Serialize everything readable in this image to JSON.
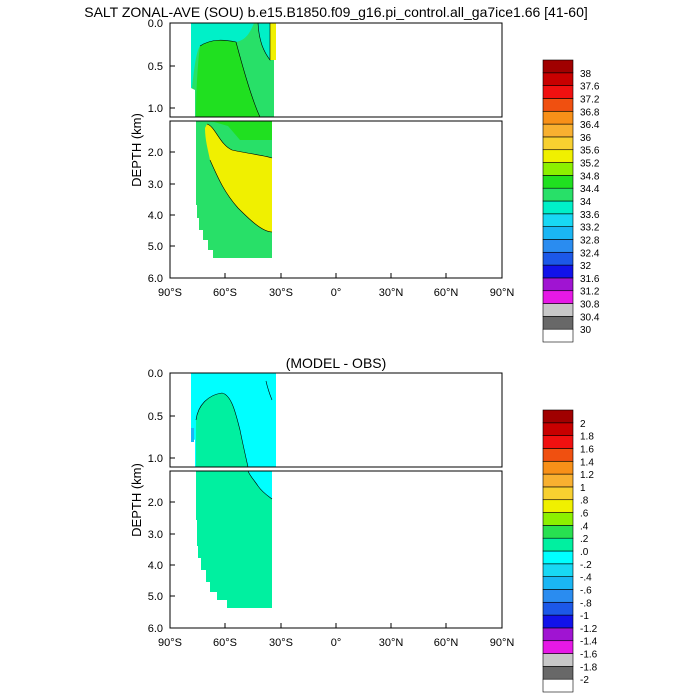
{
  "title": "SALT ZONAL-AVE (SOU) b.e15.B1850.f09_g16.pi_control.all_ga7ice1.66 [41-60]",
  "chart_data": [
    {
      "type": "contour",
      "subtitle": "",
      "ylabel": "DEPTH (km)",
      "x_range_deg": [
        -90,
        90
      ],
      "y_range_km": [
        0,
        6
      ],
      "y_split_km": 1.1,
      "x_ticks": [
        "90°S",
        "60°S",
        "30°S",
        "0°",
        "30°N",
        "60°N",
        "90°N"
      ],
      "y_ticks_upper": [
        "0.0",
        "0.5",
        "1.0"
      ],
      "y_ticks_lower": [
        "2.0",
        "3.0",
        "4.0",
        "5.0",
        "6.0"
      ],
      "colorbar_levels": [
        "30",
        "30.4",
        "30.8",
        "31.2",
        "31.6",
        "32",
        "32.4",
        "32.8",
        "33.2",
        "33.6",
        "34",
        "34.4",
        "34.8",
        "35.2",
        "35.6",
        "36",
        "36.4",
        "36.8",
        "37.2",
        "37.6",
        "38"
      ],
      "colorbar_colors": [
        "#ffffff",
        "#686868",
        "#c8c8c8",
        "#e619e6",
        "#a014d2",
        "#1212ea",
        "#1c58e8",
        "#2a8cf0",
        "#1ab6f4",
        "#18d8f4",
        "#00f0c8",
        "#28e068",
        "#20e020",
        "#8cf000",
        "#f0f000",
        "#f8d030",
        "#f8b030",
        "#f89018",
        "#f05010",
        "#f01010",
        "#c80000",
        "#a00000"
      ],
      "regions": [
        {
          "value_band": "34-34.4",
          "lat": [
            -77,
            -31
          ],
          "depth_km": [
            0,
            5.35
          ]
        },
        {
          "value_band": "33.6-34",
          "lat": [
            -77,
            -60
          ],
          "depth_km": [
            0,
            0.1
          ]
        },
        {
          "value_band": "34.8-35.2",
          "lat": [
            -67,
            -31
          ],
          "depth_km": [
            1.15,
            3.3
          ]
        },
        {
          "value_band": "34.4-34.8",
          "lat": [
            -71,
            -31
          ],
          "depth_km": [
            1.2,
            5.3
          ]
        }
      ]
    },
    {
      "type": "contour",
      "subtitle": "(MODEL - OBS)",
      "ylabel": "DEPTH (km)",
      "x_range_deg": [
        -90,
        90
      ],
      "y_range_km": [
        0,
        6
      ],
      "y_split_km": 1.1,
      "x_ticks": [
        "90°S",
        "60°S",
        "30°S",
        "0°",
        "30°N",
        "60°N",
        "90°N"
      ],
      "y_ticks_upper": [
        "0.0",
        "0.5",
        "1.0"
      ],
      "y_ticks_lower": [
        "2.0",
        "3.0",
        "4.0",
        "5.0",
        "6.0"
      ],
      "colorbar_levels": [
        "-2",
        "-1.8",
        "-1.6",
        "-1.4",
        "-1.2",
        "-1",
        "-.8",
        "-.6",
        "-.4",
        "-.2",
        ".0",
        ".2",
        ".4",
        ".6",
        ".8",
        "1",
        "1.2",
        "1.4",
        "1.6",
        "1.8",
        "2"
      ],
      "colorbar_colors": [
        "#ffffff",
        "#686868",
        "#c8c8c8",
        "#e619e6",
        "#a014d2",
        "#1212ea",
        "#1c58e8",
        "#2a8cf0",
        "#1ab6f4",
        "#18d8f4",
        "#00ffff",
        "#00f0a0",
        "#28e050",
        "#8cf000",
        "#f0f000",
        "#f8d030",
        "#f8b030",
        "#f89018",
        "#f05010",
        "#f01010",
        "#c80000",
        "#a00000"
      ],
      "regions": [
        {
          "value_band": ".0-.2",
          "lat": [
            -77,
            -31
          ],
          "depth_km": [
            0,
            5.35
          ]
        },
        {
          "value_band": "-.2-.0",
          "lat": [
            -77,
            -31
          ],
          "depth_km": [
            0,
            1.9
          ]
        }
      ]
    }
  ]
}
